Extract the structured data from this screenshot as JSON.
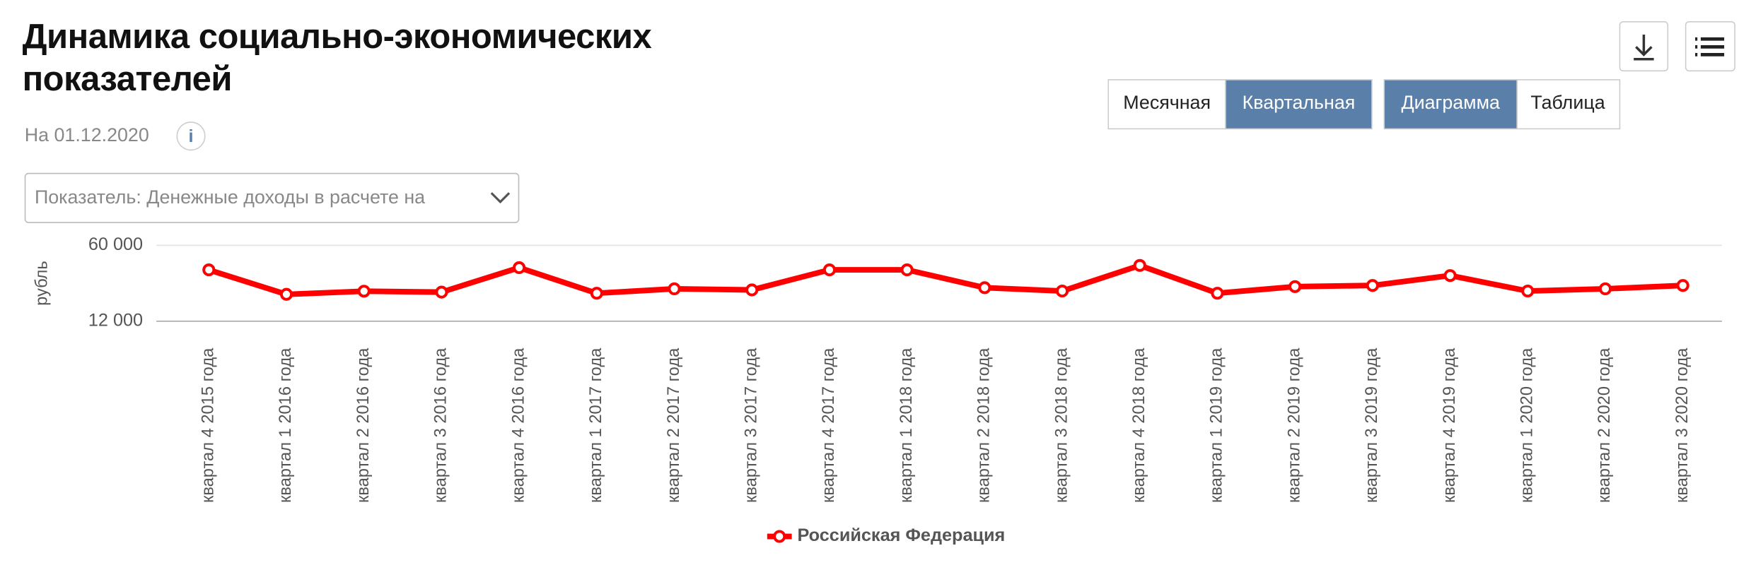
{
  "header": {
    "title": "Динамика социально-экономических показателей",
    "date": "На 01.12.2020",
    "info": "i"
  },
  "controls": {
    "period": [
      "Месячная",
      "Квартальная"
    ],
    "view": [
      "Диаграмма",
      "Таблица"
    ],
    "indicator": "Показатель: Денежные доходы в расчете на"
  },
  "chart_data": {
    "type": "line",
    "ylabel": "рубль",
    "categories": [
      "квартал 4 2015 года",
      "квартал 1 2016 года",
      "квартал 2 2016 года",
      "квартал 3 2016 года",
      "квартал 4 2016 года",
      "квартал 1 2017 года",
      "квартал 2 2017 года",
      "квартал 3 2017 года",
      "квартал 4 2017 года",
      "квартал 1 2018 года",
      "квартал 2 2018 года",
      "квартал 3 2018 года",
      "квартал 4 2018 года",
      "квартал 1 2019 года",
      "квартал 2 2019 года",
      "квартал 3 2019 года",
      "квартал 4 2019 года",
      "квартал 1 2020 года",
      "квартал 2 2020 года",
      "квартал 3 2020 года"
    ],
    "series": [
      {
        "name": "Российская Федерация",
        "color": "#ff0000",
        "values": [
          44500,
          29000,
          31000,
          30400,
          45900,
          29700,
          32500,
          31800,
          44500,
          44500,
          33200,
          31100,
          47300,
          29700,
          33900,
          34600,
          40900,
          31100,
          32500,
          34600
        ]
      }
    ],
    "ylim": [
      12000,
      60000
    ],
    "yticks": [
      {
        "value": 12000,
        "label": "12 000"
      },
      {
        "value": 60000,
        "label": "60 000"
      }
    ],
    "grid": true,
    "legend": "bottom"
  }
}
